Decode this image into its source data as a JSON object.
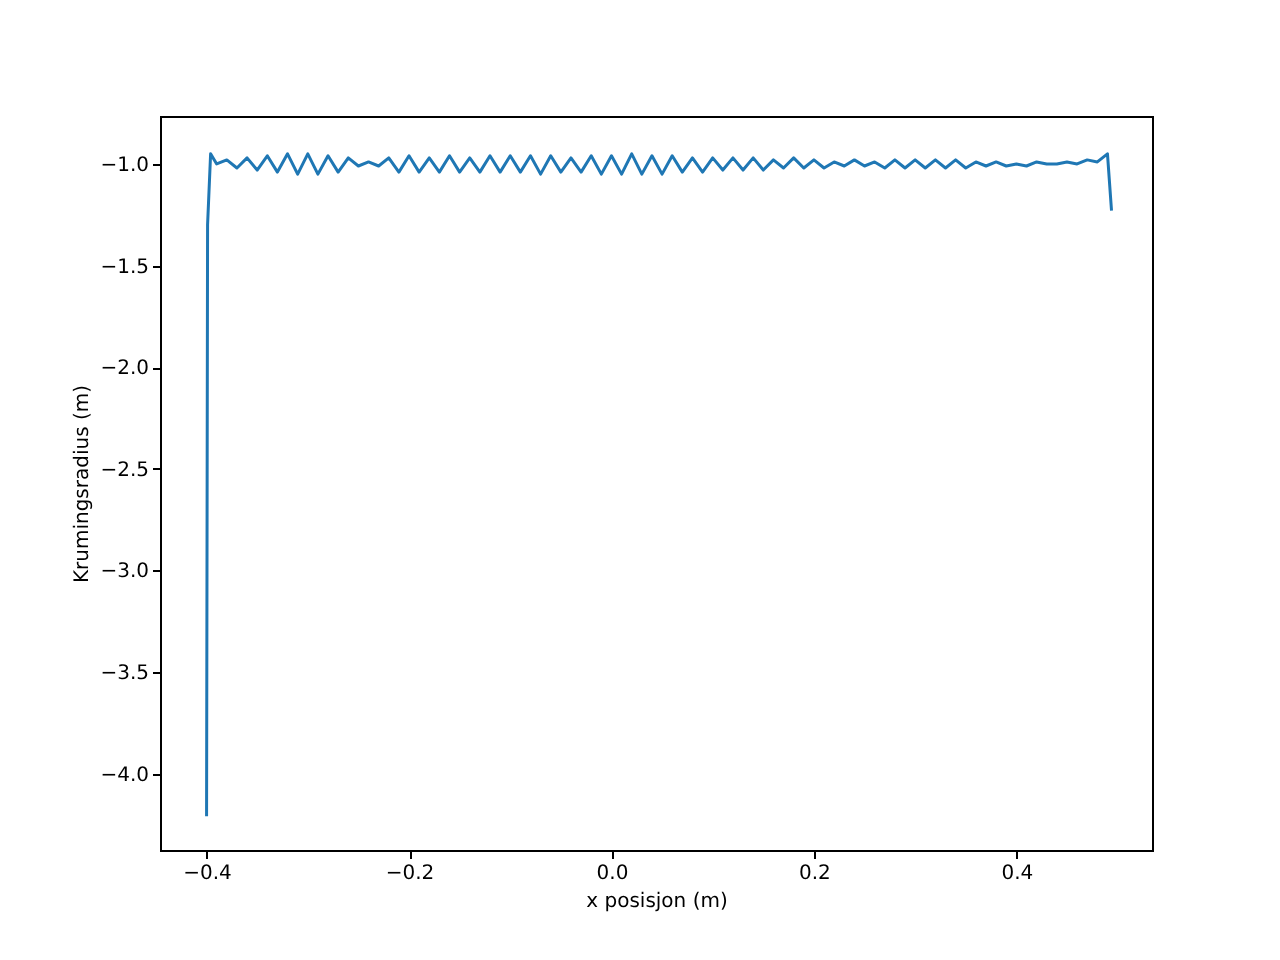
{
  "chart_data": {
    "type": "line",
    "xlabel": "x posisjon (m)",
    "ylabel": "Krumingsradius (m)",
    "x": [
      -0.4,
      -0.399,
      -0.396,
      -0.39,
      -0.38,
      -0.37,
      -0.36,
      -0.35,
      -0.34,
      -0.33,
      -0.32,
      -0.31,
      -0.3,
      -0.29,
      -0.28,
      -0.27,
      -0.26,
      -0.25,
      -0.24,
      -0.23,
      -0.22,
      -0.21,
      -0.2,
      -0.19,
      -0.18,
      -0.17,
      -0.16,
      -0.15,
      -0.14,
      -0.13,
      -0.12,
      -0.11,
      -0.1,
      -0.09,
      -0.08,
      -0.07,
      -0.06,
      -0.05,
      -0.04,
      -0.03,
      -0.02,
      -0.01,
      0.0,
      0.01,
      0.02,
      0.03,
      0.04,
      0.05,
      0.06,
      0.07,
      0.08,
      0.09,
      0.1,
      0.11,
      0.12,
      0.13,
      0.14,
      0.15,
      0.16,
      0.17,
      0.18,
      0.19,
      0.2,
      0.21,
      0.22,
      0.23,
      0.24,
      0.25,
      0.26,
      0.27,
      0.28,
      0.29,
      0.3,
      0.31,
      0.32,
      0.33,
      0.34,
      0.35,
      0.36,
      0.37,
      0.38,
      0.39,
      0.4,
      0.41,
      0.42,
      0.43,
      0.44,
      0.45,
      0.46,
      0.47,
      0.48,
      0.49,
      0.494
    ],
    "series": [
      {
        "color": "#1f77b4",
        "values": [
          -4.21,
          -1.3,
          -0.95,
          -1.0,
          -0.98,
          -1.02,
          -0.97,
          -1.03,
          -0.96,
          -1.04,
          -0.95,
          -1.05,
          -0.95,
          -1.05,
          -0.96,
          -1.04,
          -0.97,
          -1.01,
          -0.99,
          -1.01,
          -0.97,
          -1.04,
          -0.96,
          -1.04,
          -0.97,
          -1.04,
          -0.96,
          -1.04,
          -0.97,
          -1.04,
          -0.96,
          -1.04,
          -0.96,
          -1.04,
          -0.96,
          -1.05,
          -0.96,
          -1.04,
          -0.97,
          -1.04,
          -0.96,
          -1.05,
          -0.96,
          -1.05,
          -0.95,
          -1.05,
          -0.96,
          -1.05,
          -0.96,
          -1.04,
          -0.97,
          -1.04,
          -0.97,
          -1.03,
          -0.97,
          -1.03,
          -0.97,
          -1.03,
          -0.98,
          -1.02,
          -0.97,
          -1.02,
          -0.98,
          -1.02,
          -0.99,
          -1.01,
          -0.98,
          -1.01,
          -0.99,
          -1.02,
          -0.98,
          -1.02,
          -0.98,
          -1.02,
          -0.98,
          -1.02,
          -0.98,
          -1.02,
          -0.99,
          -1.01,
          -0.99,
          -1.01,
          -1.0,
          -1.01,
          -0.99,
          -1.0,
          -1.0,
          -0.99,
          -1.0,
          -0.98,
          -0.99,
          -0.95,
          -1.23
        ]
      }
    ],
    "xlim": [
      -0.446,
      0.534
    ],
    "ylim": [
      -4.376,
      -0.764
    ],
    "xticks": [
      {
        "value": -0.4,
        "label": "−0.4"
      },
      {
        "value": -0.2,
        "label": "−0.2"
      },
      {
        "value": 0.0,
        "label": "0.0"
      },
      {
        "value": 0.2,
        "label": "0.2"
      },
      {
        "value": 0.4,
        "label": "0.4"
      }
    ],
    "yticks": [
      {
        "value": -4.0,
        "label": "−4.0"
      },
      {
        "value": -3.5,
        "label": "−3.5"
      },
      {
        "value": -3.0,
        "label": "−3.0"
      },
      {
        "value": -2.5,
        "label": "−2.5"
      },
      {
        "value": -2.0,
        "label": "−2.0"
      },
      {
        "value": -1.5,
        "label": "−1.5"
      },
      {
        "value": -1.0,
        "label": "−1.0"
      }
    ]
  }
}
